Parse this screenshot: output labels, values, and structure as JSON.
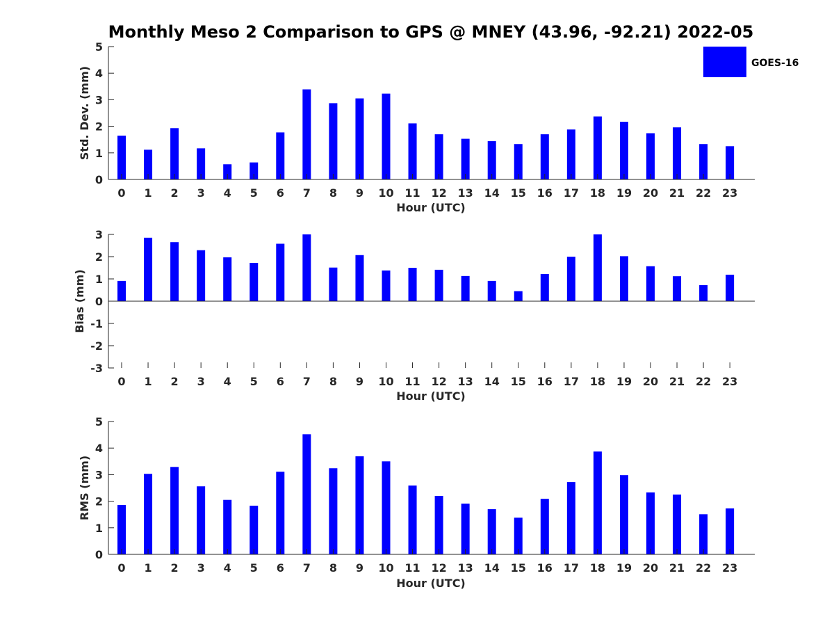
{
  "title": "Monthly Meso 2 Comparison to GPS @ MNEY (43.96, -92.21) 2022-05",
  "legend": {
    "label": "GOES-16",
    "color": "#0000ff",
    "placement": "top-right"
  },
  "chart_data": [
    {
      "type": "bar",
      "name": "std-dev",
      "categories": [
        "0",
        "1",
        "2",
        "3",
        "4",
        "5",
        "6",
        "7",
        "8",
        "9",
        "10",
        "11",
        "12",
        "13",
        "14",
        "15",
        "16",
        "17",
        "18",
        "19",
        "20",
        "21",
        "22",
        "23"
      ],
      "values": [
        1.65,
        1.12,
        1.93,
        1.17,
        0.57,
        0.64,
        1.77,
        3.39,
        2.87,
        3.05,
        3.23,
        2.11,
        1.7,
        1.53,
        1.44,
        1.33,
        1.7,
        1.88,
        2.37,
        2.17,
        1.74,
        1.96,
        1.33,
        1.25
      ],
      "xlabel": "Hour (UTC)",
      "ylabel": "Std. Dev. (mm)",
      "ylim": [
        0,
        5
      ],
      "yticks": [
        0,
        1,
        2,
        3,
        4,
        5
      ],
      "color": "#0000ff",
      "grid": false
    },
    {
      "type": "bar",
      "name": "bias",
      "categories": [
        "0",
        "1",
        "2",
        "3",
        "4",
        "5",
        "6",
        "7",
        "8",
        "9",
        "10",
        "11",
        "12",
        "13",
        "14",
        "15",
        "16",
        "17",
        "18",
        "19",
        "20",
        "21",
        "22",
        "23"
      ],
      "values": [
        0.91,
        2.85,
        2.65,
        2.29,
        1.97,
        1.72,
        2.58,
        3.0,
        1.51,
        2.07,
        1.38,
        1.5,
        1.41,
        1.13,
        0.91,
        0.45,
        1.22,
        2.0,
        3.0,
        2.02,
        1.57,
        1.12,
        0.72,
        1.19
      ],
      "xlabel": "Hour (UTC)",
      "ylabel": "Bias (mm)",
      "ylim": [
        -3,
        3
      ],
      "yticks": [
        -3,
        -2,
        -1,
        0,
        1,
        2,
        3
      ],
      "color": "#0000ff",
      "grid": false
    },
    {
      "type": "bar",
      "name": "rms",
      "categories": [
        "0",
        "1",
        "2",
        "3",
        "4",
        "5",
        "6",
        "7",
        "8",
        "9",
        "10",
        "11",
        "12",
        "13",
        "14",
        "15",
        "16",
        "17",
        "18",
        "19",
        "20",
        "21",
        "22",
        "23"
      ],
      "values": [
        1.86,
        3.03,
        3.29,
        2.56,
        2.05,
        1.83,
        3.11,
        4.52,
        3.24,
        3.69,
        3.5,
        2.59,
        2.2,
        1.91,
        1.7,
        1.38,
        2.09,
        2.72,
        3.87,
        2.98,
        2.33,
        2.25,
        1.51,
        1.73
      ],
      "xlabel": "Hour (UTC)",
      "ylabel": "RMS (mm)",
      "ylim": [
        0,
        5
      ],
      "yticks": [
        0,
        1,
        2,
        3,
        4,
        5
      ],
      "color": "#0000ff",
      "grid": false
    }
  ]
}
